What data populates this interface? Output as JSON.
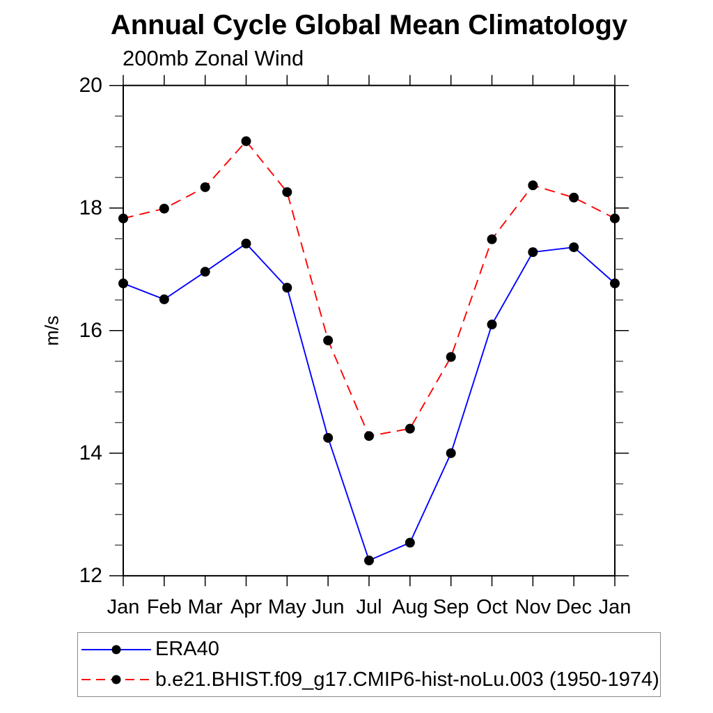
{
  "title": "Annual Cycle Global Mean Climatology",
  "subtitle": "200mb Zonal Wind",
  "ylabel": "m/s",
  "chart_data": {
    "type": "line",
    "x_categories": [
      "Jan",
      "Feb",
      "Mar",
      "Apr",
      "May",
      "Jun",
      "Jul",
      "Aug",
      "Sep",
      "Oct",
      "Nov",
      "Dec",
      "Jan"
    ],
    "ylim": [
      12,
      20
    ],
    "y_major_ticks": [
      12,
      14,
      16,
      18,
      20
    ],
    "y_minor_step": 0.5,
    "grid": false,
    "legend_position": "bottom-left-box",
    "marker": "filled-circle",
    "marker_color": "#000000",
    "series": [
      {
        "name": "ERA40",
        "color": "#0000ff",
        "line_style": "solid",
        "values": [
          16.77,
          16.51,
          16.96,
          17.42,
          16.7,
          14.25,
          12.25,
          12.54,
          14.0,
          16.1,
          17.28,
          17.36,
          16.77
        ]
      },
      {
        "name": "b.e21.BHIST.f09_g17.CMIP6-hist-noLu.003 (1950-1974)",
        "color": "#ff0000",
        "line_style": "dashed",
        "values": [
          17.83,
          17.99,
          18.34,
          19.09,
          18.26,
          15.84,
          14.28,
          14.4,
          15.57,
          17.49,
          18.37,
          18.17,
          17.83
        ]
      }
    ]
  }
}
